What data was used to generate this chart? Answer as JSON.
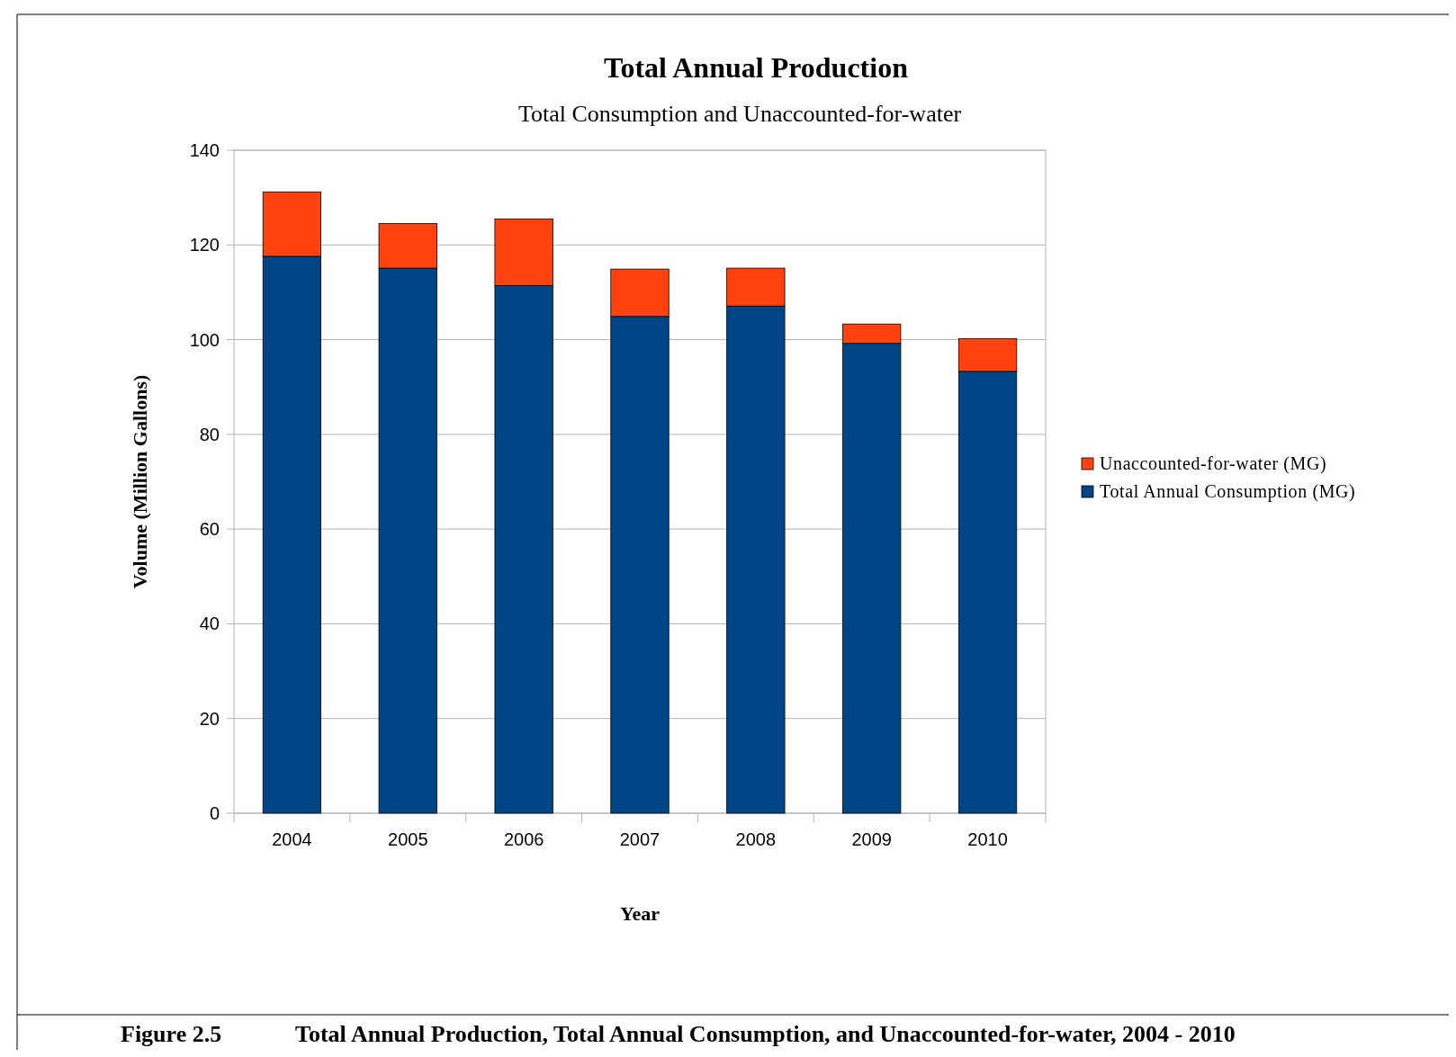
{
  "chart_data": {
    "type": "bar",
    "title": "Total Annual Production",
    "subtitle": "Total Consumption and Unaccounted-for-water",
    "xlabel": "Year",
    "ylabel": "Volume (Million Gallons)",
    "categories": [
      "2004",
      "2005",
      "2006",
      "2007",
      "2008",
      "2009",
      "2010"
    ],
    "series": [
      {
        "name": "Total Annual Consumption (MG)",
        "color": "#004586",
        "values": [
          117.6,
          115.1,
          111.4,
          104.9,
          107.1,
          99.2,
          93.3
        ]
      },
      {
        "name": "Unaccounted-for-water (MG)",
        "color": "#ff420e",
        "values": [
          13.6,
          9.4,
          14.1,
          10.0,
          8.0,
          4.1,
          6.9
        ]
      }
    ],
    "stacked": true,
    "ylim": [
      0,
      140
    ],
    "yticks": [
      0,
      20,
      40,
      60,
      80,
      100,
      120,
      140
    ],
    "grid": "y",
    "legend": "right",
    "annotations": [
      "Figure 2.5",
      "Total Annual Production, Total Annual Consumption, and Unaccounted-for-water, 2004 - 2010"
    ]
  }
}
